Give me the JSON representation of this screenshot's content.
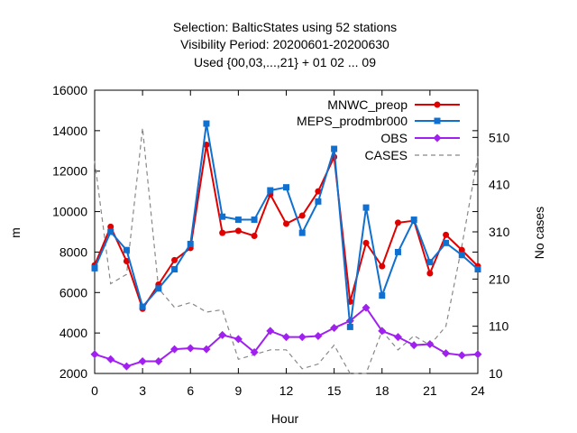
{
  "chart_data": {
    "type": "line",
    "title_lines": [
      "Selection: BalticStates using    52 stations",
      "Visibility   Period: 20200601-20200630",
      "Used {00,03,...,21} + 01 02 ... 09"
    ],
    "xlabel": "Hour",
    "ylabel": "m",
    "y2label": "No cases",
    "xlim": [
      0,
      24
    ],
    "ylim": [
      2000,
      16000
    ],
    "y2lim": [
      10,
      610
    ],
    "xticks": [
      "0",
      "3",
      "6",
      "9",
      "12",
      "15",
      "18",
      "21",
      "24"
    ],
    "yticks": [
      "2000",
      "4000",
      "6000",
      "8000",
      "10000",
      "12000",
      "14000",
      "16000"
    ],
    "y2ticks": [
      "10",
      "110",
      "210",
      "310",
      "410",
      "510"
    ],
    "legend_position": "top-right",
    "x": [
      0,
      1,
      2,
      3,
      4,
      5,
      6,
      7,
      8,
      9,
      10,
      11,
      12,
      13,
      14,
      15,
      16,
      17,
      18,
      19,
      20,
      21,
      22,
      23,
      24
    ],
    "series": [
      {
        "name": "MNWC_preop",
        "color": "#e00000",
        "marker": "circle",
        "values": [
          7350,
          9250,
          7550,
          5200,
          6400,
          7600,
          8200,
          13300,
          8950,
          9050,
          8800,
          10850,
          9400,
          9800,
          11000,
          12700,
          5550,
          8450,
          7300,
          9450,
          9550,
          6950,
          8850,
          8100,
          7300
        ]
      },
      {
        "name": "MEPS_prodmbr000",
        "color": "#1070d0",
        "marker": "square",
        "values": [
          7200,
          9000,
          8100,
          5300,
          6200,
          7150,
          8400,
          14350,
          9750,
          9600,
          9600,
          11050,
          11200,
          8950,
          10500,
          13100,
          4300,
          10200,
          5850,
          8000,
          9600,
          7500,
          8450,
          7850,
          7150
        ]
      },
      {
        "name": "OBS",
        "color": "#a020f0",
        "marker": "diamond",
        "values": [
          2950,
          2700,
          2350,
          2600,
          2600,
          3200,
          3250,
          3200,
          3900,
          3700,
          3050,
          4100,
          3800,
          3800,
          3850,
          4250,
          4600,
          5250,
          4100,
          3800,
          3400,
          3450,
          3000,
          2900,
          2950
        ]
      },
      {
        "name": "CASES",
        "color": "#888888",
        "dashed": true,
        "axis": "right",
        "values": [
          460,
          200,
          220,
          530,
          190,
          150,
          160,
          140,
          145,
          40,
          50,
          60,
          60,
          20,
          30,
          70,
          10,
          10,
          100,
          60,
          90,
          70,
          110,
          280,
          470
        ]
      }
    ]
  }
}
